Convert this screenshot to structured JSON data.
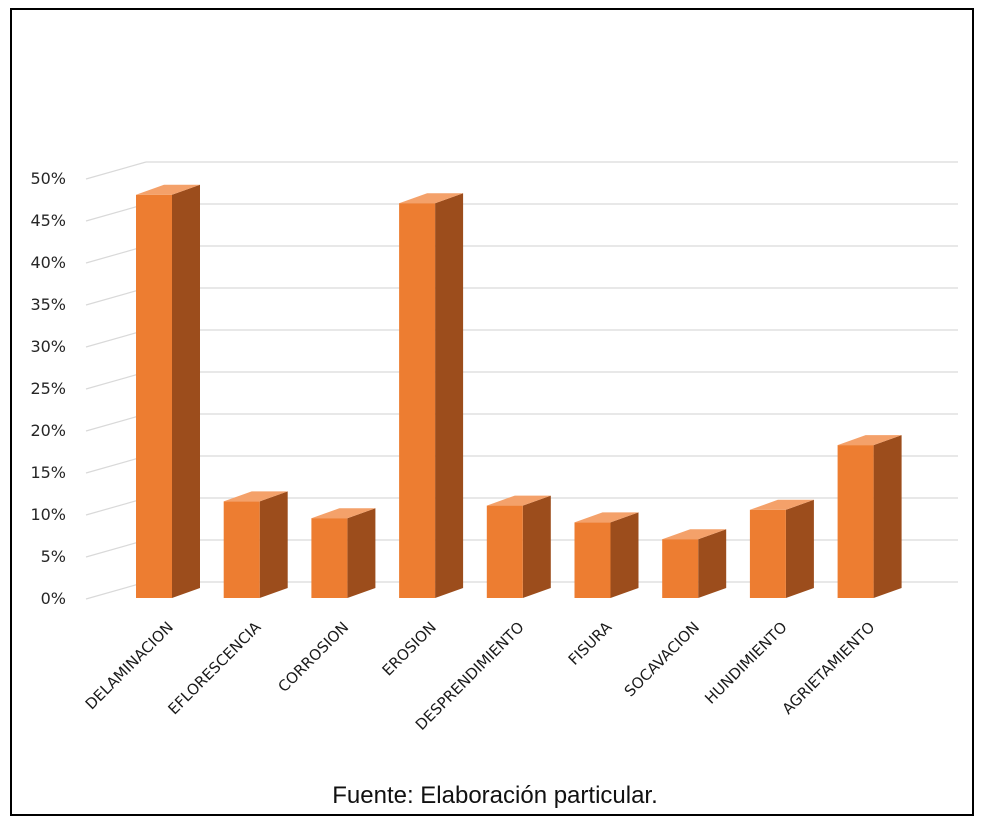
{
  "chart_data": {
    "type": "bar",
    "style": "3d-column",
    "title": "",
    "xlabel": "",
    "ylabel": "",
    "categories": [
      "DELAMINACION",
      "EFLORESCENCIA",
      "CORROSION",
      "EROSION",
      "DESPRENDIMIENTO",
      "FISURA",
      "SOCAVACION",
      "HUNDIMIENTO",
      "AGRIETAMIENTO"
    ],
    "values": [
      48,
      11.5,
      9.5,
      47,
      11,
      9,
      7,
      10.5,
      18.2
    ],
    "ylim": [
      0,
      50
    ],
    "ytick_values": [
      0,
      5,
      10,
      15,
      20,
      25,
      30,
      35,
      40,
      45,
      50
    ],
    "ytick_labels": [
      "0%",
      "5%",
      "10%",
      "15%",
      "20%",
      "25%",
      "30%",
      "35%",
      "40%",
      "45%",
      "50%"
    ],
    "grid": true,
    "legend": "none",
    "colors": {
      "front": "#ed7d31",
      "side": "#9c4d1c",
      "top": "#f4a16a",
      "grid": "#d9d9d9"
    }
  },
  "source_note": "Fuente: Elaboración particular."
}
